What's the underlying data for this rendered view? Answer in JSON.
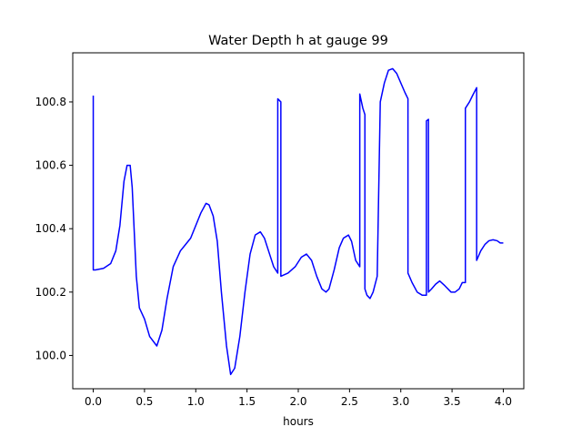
{
  "chart_data": {
    "type": "line",
    "title": "Water Depth h at gauge 99",
    "xlabel": "hours",
    "ylabel": "",
    "xlim": [
      -0.2,
      4.2
    ],
    "ylim": [
      99.895,
      100.955
    ],
    "xticks": [
      0.0,
      0.5,
      1.0,
      1.5,
      2.0,
      2.5,
      3.0,
      3.5,
      4.0
    ],
    "xtick_labels": [
      "0.0",
      "0.5",
      "1.0",
      "1.5",
      "2.0",
      "2.5",
      "3.0",
      "3.5",
      "4.0"
    ],
    "yticks": [
      100.0,
      100.2,
      100.4,
      100.6,
      100.8
    ],
    "ytick_labels": [
      "100.0",
      "100.2",
      "100.4",
      "100.6",
      "100.8"
    ],
    "grid": false,
    "legend": "none",
    "series": [
      {
        "name": "",
        "color": "#0000ff",
        "x": [
          0.0,
          0.0,
          0.02,
          0.1,
          0.17,
          0.22,
          0.26,
          0.3,
          0.33,
          0.36,
          0.38,
          0.42,
          0.45,
          0.5,
          0.55,
          0.62,
          0.67,
          0.72,
          0.78,
          0.85,
          0.9,
          0.95,
          1.0,
          1.05,
          1.1,
          1.13,
          1.17,
          1.21,
          1.25,
          1.3,
          1.34,
          1.38,
          1.43,
          1.48,
          1.53,
          1.58,
          1.63,
          1.67,
          1.72,
          1.76,
          1.8,
          1.8,
          1.83,
          1.83,
          1.9,
          1.97,
          2.03,
          2.08,
          2.13,
          2.18,
          2.23,
          2.27,
          2.3,
          2.35,
          2.4,
          2.44,
          2.49,
          2.52,
          2.56,
          2.6,
          2.6,
          2.63,
          2.65,
          2.65,
          2.67,
          2.7,
          2.73,
          2.77,
          2.8,
          2.8,
          2.84,
          2.88,
          2.92,
          2.96,
          3.0,
          3.04,
          3.07,
          3.07,
          3.11,
          3.16,
          3.21,
          3.25,
          3.25,
          3.27,
          3.27,
          3.3,
          3.34,
          3.38,
          3.43,
          3.49,
          3.53,
          3.57,
          3.6,
          3.63,
          3.63,
          3.67,
          3.7,
          3.74,
          3.74,
          3.78,
          3.82,
          3.86,
          3.9,
          3.94,
          3.97,
          4.0
        ],
        "y": [
          100.82,
          100.27,
          100.27,
          100.275,
          100.29,
          100.33,
          100.41,
          100.55,
          100.6,
          100.6,
          100.53,
          100.25,
          100.15,
          100.115,
          100.06,
          100.03,
          100.08,
          100.18,
          100.28,
          100.33,
          100.35,
          100.37,
          100.41,
          100.45,
          100.48,
          100.475,
          100.44,
          100.36,
          100.2,
          100.03,
          99.94,
          99.96,
          100.06,
          100.2,
          100.32,
          100.38,
          100.39,
          100.37,
          100.32,
          100.28,
          100.26,
          100.81,
          100.8,
          100.25,
          100.26,
          100.28,
          100.31,
          100.32,
          100.3,
          100.25,
          100.21,
          100.2,
          100.21,
          100.27,
          100.34,
          100.37,
          100.38,
          100.36,
          100.3,
          100.28,
          100.825,
          100.78,
          100.76,
          100.21,
          100.19,
          100.18,
          100.2,
          100.25,
          100.8,
          100.8,
          100.86,
          100.9,
          100.905,
          100.89,
          100.86,
          100.83,
          100.81,
          100.26,
          100.23,
          100.2,
          100.19,
          100.19,
          100.74,
          100.745,
          100.2,
          100.21,
          100.225,
          100.235,
          100.22,
          100.2,
          100.2,
          100.21,
          100.23,
          100.23,
          100.78,
          100.8,
          100.82,
          100.845,
          100.3,
          100.33,
          100.35,
          100.362,
          100.365,
          100.362,
          100.355,
          100.355
        ]
      }
    ]
  }
}
